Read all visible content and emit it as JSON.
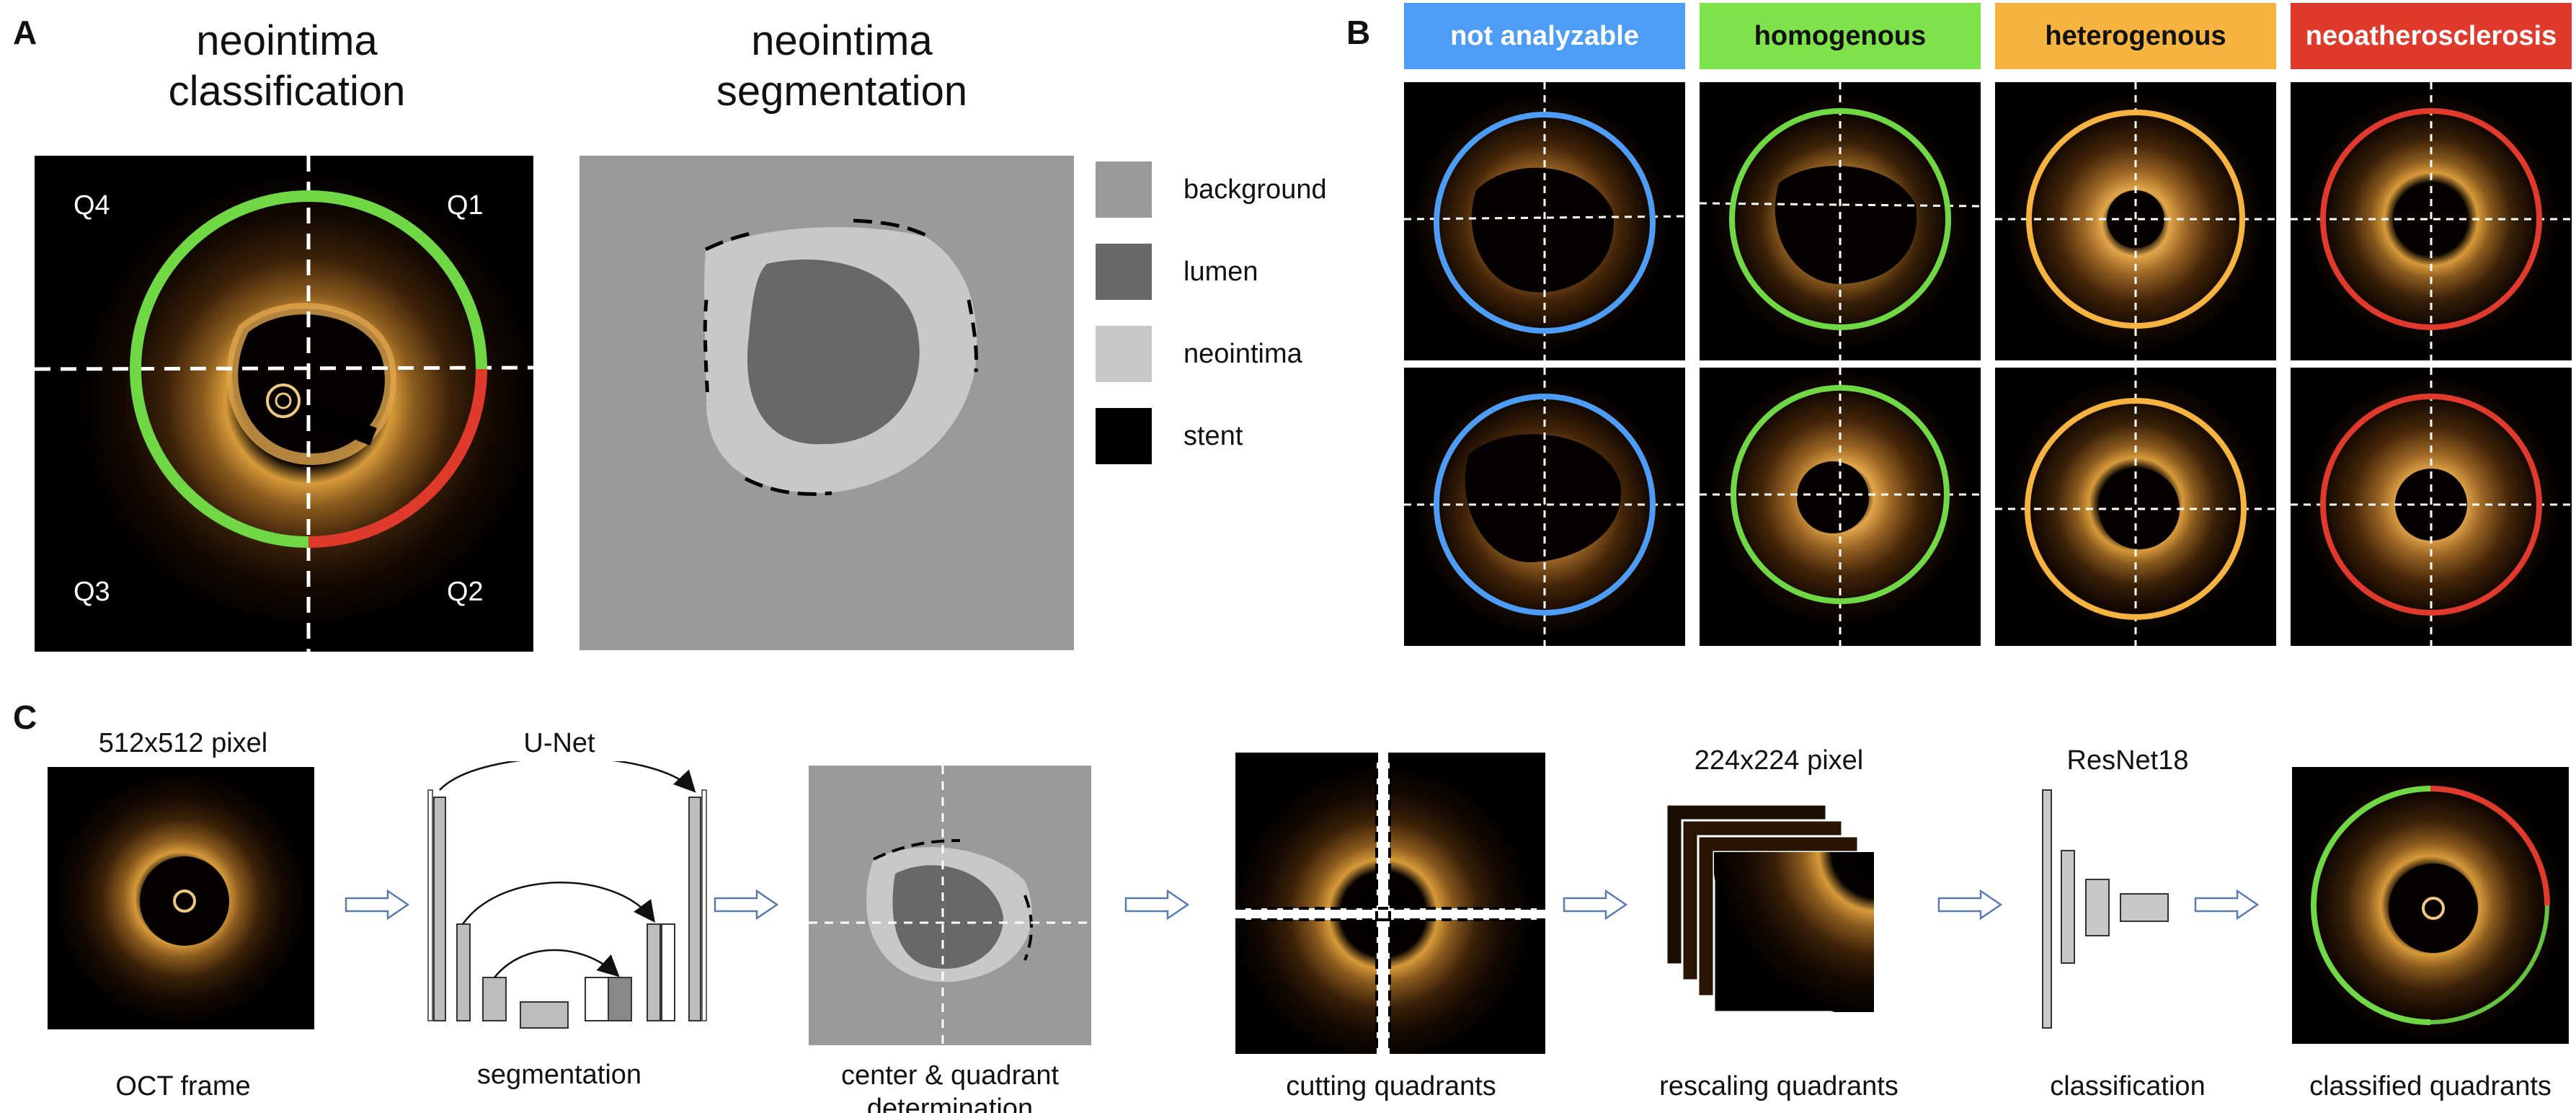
{
  "panels": {
    "a": {
      "letter": "A",
      "classification_title_line1": "neointima",
      "classification_title_line2": "classification",
      "segmentation_title_line1": "neointima",
      "segmentation_title_line2": "segmentation",
      "quadrants": [
        "Q4",
        "Q1",
        "Q3",
        "Q2"
      ]
    },
    "b": {
      "letter": "B",
      "classes": [
        {
          "label": "not analyzable",
          "color": "#4d9cf5"
        },
        {
          "label": "homogenous",
          "color": "#7ee24a"
        },
        {
          "label": "heterogenous",
          "color": "#f6b33f"
        },
        {
          "label": "neoatherosclerosis",
          "color": "#e03a2c"
        }
      ]
    },
    "c": {
      "letter": "C",
      "input_size_label": "512x512 pixel",
      "unet_label": "U-Net",
      "rescale_size_label": "224x224 pixel",
      "resnet_label": "ResNet18",
      "steps": [
        "OCT frame",
        "segmentation",
        "center & quadrant determination",
        "cutting quadrants",
        "rescaling quadrants",
        "classification",
        "classified quadrants"
      ]
    }
  },
  "legend": [
    {
      "label": "background",
      "color": "#9a9a9a"
    },
    {
      "label": "lumen",
      "color": "#686868"
    },
    {
      "label": "neointima",
      "color": "#c8c8c8"
    },
    {
      "label": "stent",
      "color": "#000000"
    }
  ],
  "colors": {
    "ring_green": "#6fd844",
    "ring_red": "#e03a2c",
    "background_gray": "#9a9a9a",
    "lumen_gray": "#686868",
    "neointima_gray": "#c8c8c8"
  }
}
